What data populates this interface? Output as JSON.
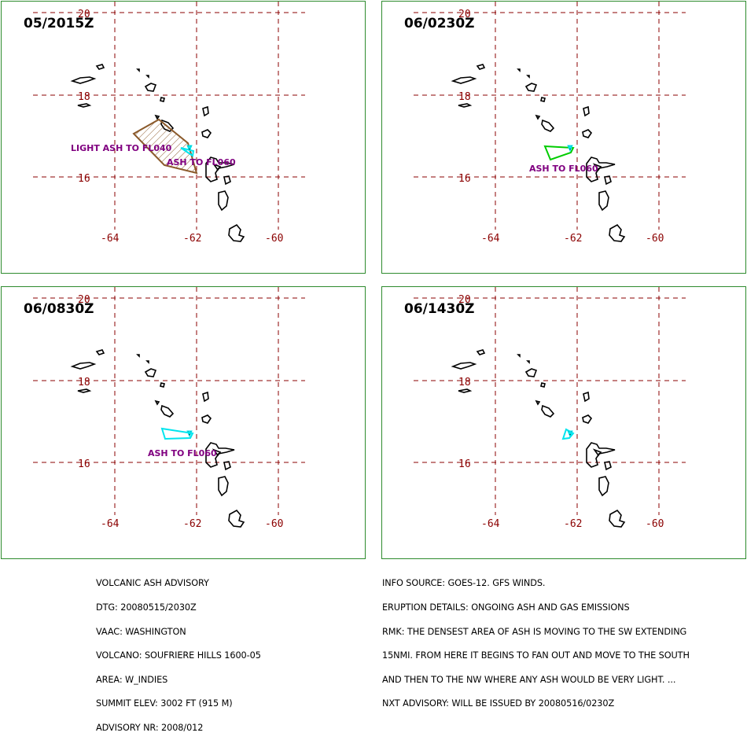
{
  "panels": [
    {
      "time": "05/2015Z",
      "ash_label": "LIGHT ASH TO FL040",
      "ash_label2": "ASH TO FL060"
    },
    {
      "time": "06/0230Z",
      "ash_label": "ASH TO FL060"
    },
    {
      "time": "06/0830Z",
      "ash_label": "ASH TO FL060"
    },
    {
      "time": "06/1430Z"
    }
  ],
  "axes": {
    "lat_labels": [
      "20",
      "18",
      "16"
    ],
    "lon_labels": [
      "-64",
      "-62",
      "-60"
    ]
  },
  "colors": {
    "grid": "#8b0000",
    "frame": "#2e8b2e",
    "ash_light": "#8b5a2b",
    "ash_green": "#00cc00",
    "ash_cyan": "#00e5ee",
    "label": "#800080"
  },
  "advisory_left": [
    "VOLCANIC ASH ADVISORY",
    "DTG: 20080515/2030Z",
    "VAAC: WASHINGTON",
    "VOLCANO: SOUFRIERE HILLS 1600-05",
    "AREA: W_INDIES",
    "SUMMIT ELEV: 3002 FT (915 M)",
    "ADVISORY NR: 2008/012"
  ],
  "advisory_right": [
    "INFO SOURCE: GOES-12. GFS WINDS.",
    "ERUPTION DETAILS: ONGOING ASH AND GAS EMISSIONS",
    "RMK: THE DENSEST AREA OF ASH IS MOVING TO THE SW EXTENDING",
    "15NMI. FROM HERE IT BEGINS TO FAN OUT AND MOVE TO THE SOUTH",
    "AND THEN TO THE NW WHERE ANY ASH WOULD BE VERY LIGHT. ...",
    "NXT ADVISORY: WILL BE ISSUED BY 20080516/0230Z"
  ]
}
